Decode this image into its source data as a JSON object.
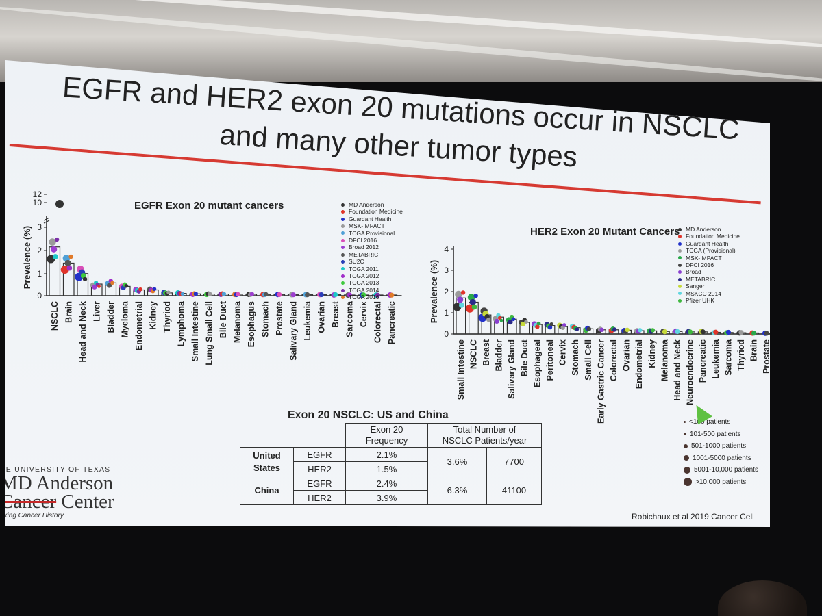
{
  "slide": {
    "title_line1": "EGFR and HER2 exon 20 mutations occur in NSCLC",
    "title_line2": "and many other tumor types",
    "colors": {
      "accent_rule": "#d63a32",
      "screen_bg": "#eef2f6"
    }
  },
  "chart_data": [
    {
      "type": "bar",
      "title": "EGFR Exon 20 mutant cancers",
      "ylabel": "Prevalence (%)",
      "xlabel": "",
      "ylim": [
        0,
        12
      ],
      "y_ticks": [
        "0",
        "1",
        "2",
        "3",
        "10",
        "12"
      ],
      "y_axis_break": [
        3,
        10
      ],
      "categories": [
        "NSCLC",
        "Brain",
        "Head and Neck",
        "Liver",
        "Bladder",
        "Myeloma",
        "Endometrial",
        "Kidney",
        "Thyriod",
        "Lymphoma",
        "Small Intestine",
        "Lung Small Cell",
        "Bile Duct",
        "Melanoma",
        "Esophagus",
        "Stomach",
        "Prostate",
        "Salivary Gland",
        "Leukemia",
        "Ovarian",
        "Breast",
        "Sarcoma",
        "Cervix",
        "Colorectal",
        "Pancreatic"
      ],
      "values": [
        2.1,
        1.4,
        0.95,
        0.5,
        0.55,
        0.4,
        0.25,
        0.25,
        0.12,
        0.1,
        0.08,
        0.07,
        0.07,
        0.06,
        0.06,
        0.05,
        0.05,
        0.04,
        0.04,
        0.04,
        0.04,
        0.03,
        0.03,
        0.03,
        0.03
      ],
      "legend": [
        {
          "name": "MD Anderson",
          "color": "#333333"
        },
        {
          "name": "Foundation Medicine",
          "color": "#e0342a"
        },
        {
          "name": "Guardant Health",
          "color": "#2231c9"
        },
        {
          "name": "MSK-IMPACT",
          "color": "#9a9a9a"
        },
        {
          "name": "TCGA Provisional",
          "color": "#4fa0d6"
        },
        {
          "name": "DFCI 2016",
          "color": "#d94fb8"
        },
        {
          "name": "Broad 2012",
          "color": "#9c3fd0"
        },
        {
          "name": "METABRIC",
          "color": "#555555"
        },
        {
          "name": "SU2C",
          "color": "#2a3fb8"
        },
        {
          "name": "TCGA 2011",
          "color": "#1ec8c8"
        },
        {
          "name": "TCGA 2012",
          "color": "#a02ec9"
        },
        {
          "name": "TCGA 2013",
          "color": "#3fc93f"
        },
        {
          "name": "TCGA 2014",
          "color": "#7b2ea8"
        },
        {
          "name": "TCGA 2016",
          "color": "#e07a2a"
        }
      ]
    },
    {
      "type": "bar",
      "title": "HER2 Exon 20 Mutant Cancers",
      "ylabel": "Prevalence (%)",
      "xlabel": "",
      "ylim": [
        0,
        4
      ],
      "y_ticks": [
        "0",
        "1",
        "2",
        "3",
        "4"
      ],
      "categories": [
        "Small Intestine",
        "NSCLC",
        "Breast",
        "Bladder",
        "Salivary Gland",
        "Bile Duct",
        "Esophageal",
        "Peritoneal",
        "Cervix",
        "Stomach",
        "Small Cell",
        "Early Gastric Cancer",
        "Colorectal",
        "Ovarian",
        "Endometrial",
        "Kidney",
        "Melanoma",
        "Head and Neck",
        "Neuroendocrine",
        "Pancreatic",
        "Leukemia",
        "Sarcoma",
        "Thyriod",
        "Brain",
        "Prostate"
      ],
      "values": [
        1.7,
        1.5,
        0.9,
        0.8,
        0.7,
        0.55,
        0.45,
        0.4,
        0.35,
        0.3,
        0.25,
        0.2,
        0.2,
        0.18,
        0.16,
        0.15,
        0.12,
        0.12,
        0.1,
        0.1,
        0.08,
        0.07,
        0.06,
        0.05,
        0.04
      ],
      "legend": [
        {
          "name": "MD Anderson",
          "color": "#333333"
        },
        {
          "name": "Foundation Medicine",
          "color": "#e0342a"
        },
        {
          "name": "Guardant Health",
          "color": "#2231c9"
        },
        {
          "name": "TCGA (Provisional)",
          "color": "#9a9a9a"
        },
        {
          "name": "MSK-IMPACT",
          "color": "#2aa84a"
        },
        {
          "name": "DFCI 2016",
          "color": "#444444"
        },
        {
          "name": "Broad",
          "color": "#8a3fd0"
        },
        {
          "name": "METABRIC",
          "color": "#2a2a8a"
        },
        {
          "name": "Sanger",
          "color": "#c6d93a"
        },
        {
          "name": "MSKCC 2014",
          "color": "#5fd6e0"
        },
        {
          "name": "Pfizer UHK",
          "color": "#3fb83f"
        }
      ]
    }
  ],
  "table": {
    "title": "Exon 20 NSCLC: US and China",
    "header_frequency": "Exon 20\nFrequency",
    "header_total": "Total Number of\nNSCLC Patients/year",
    "rows": [
      {
        "country": "United\nStates",
        "gene1": "EGFR",
        "freq1": "2.1%",
        "gene2": "HER2",
        "freq2": "1.5%",
        "total_pct": "3.6%",
        "patients": "7700"
      },
      {
        "country": "China",
        "gene1": "EGFR",
        "freq1": "2.4%",
        "gene2": "HER2",
        "freq2": "3.9%",
        "total_pct": "6.3%",
        "patients": "41100"
      }
    ]
  },
  "size_legend": [
    {
      "label": "<100 patients",
      "size": 3
    },
    {
      "label": "101-500 patients",
      "size": 4
    },
    {
      "label": "501-1000 patients",
      "size": 6
    },
    {
      "label": "1001-5000 patients",
      "size": 8
    },
    {
      "label": "5001-10,000 patients",
      "size": 10
    },
    {
      "label": ">10,000 patients",
      "size": 12
    }
  ],
  "logo": {
    "line1": "HE UNIVERSITY OF TEXAS",
    "line2": "MD Anderson",
    "line3a": "Cancer",
    "line3b": " Center",
    "tagline": "aking Cancer History"
  },
  "citation": "Robichaux et al 2019 Cancer Cell"
}
